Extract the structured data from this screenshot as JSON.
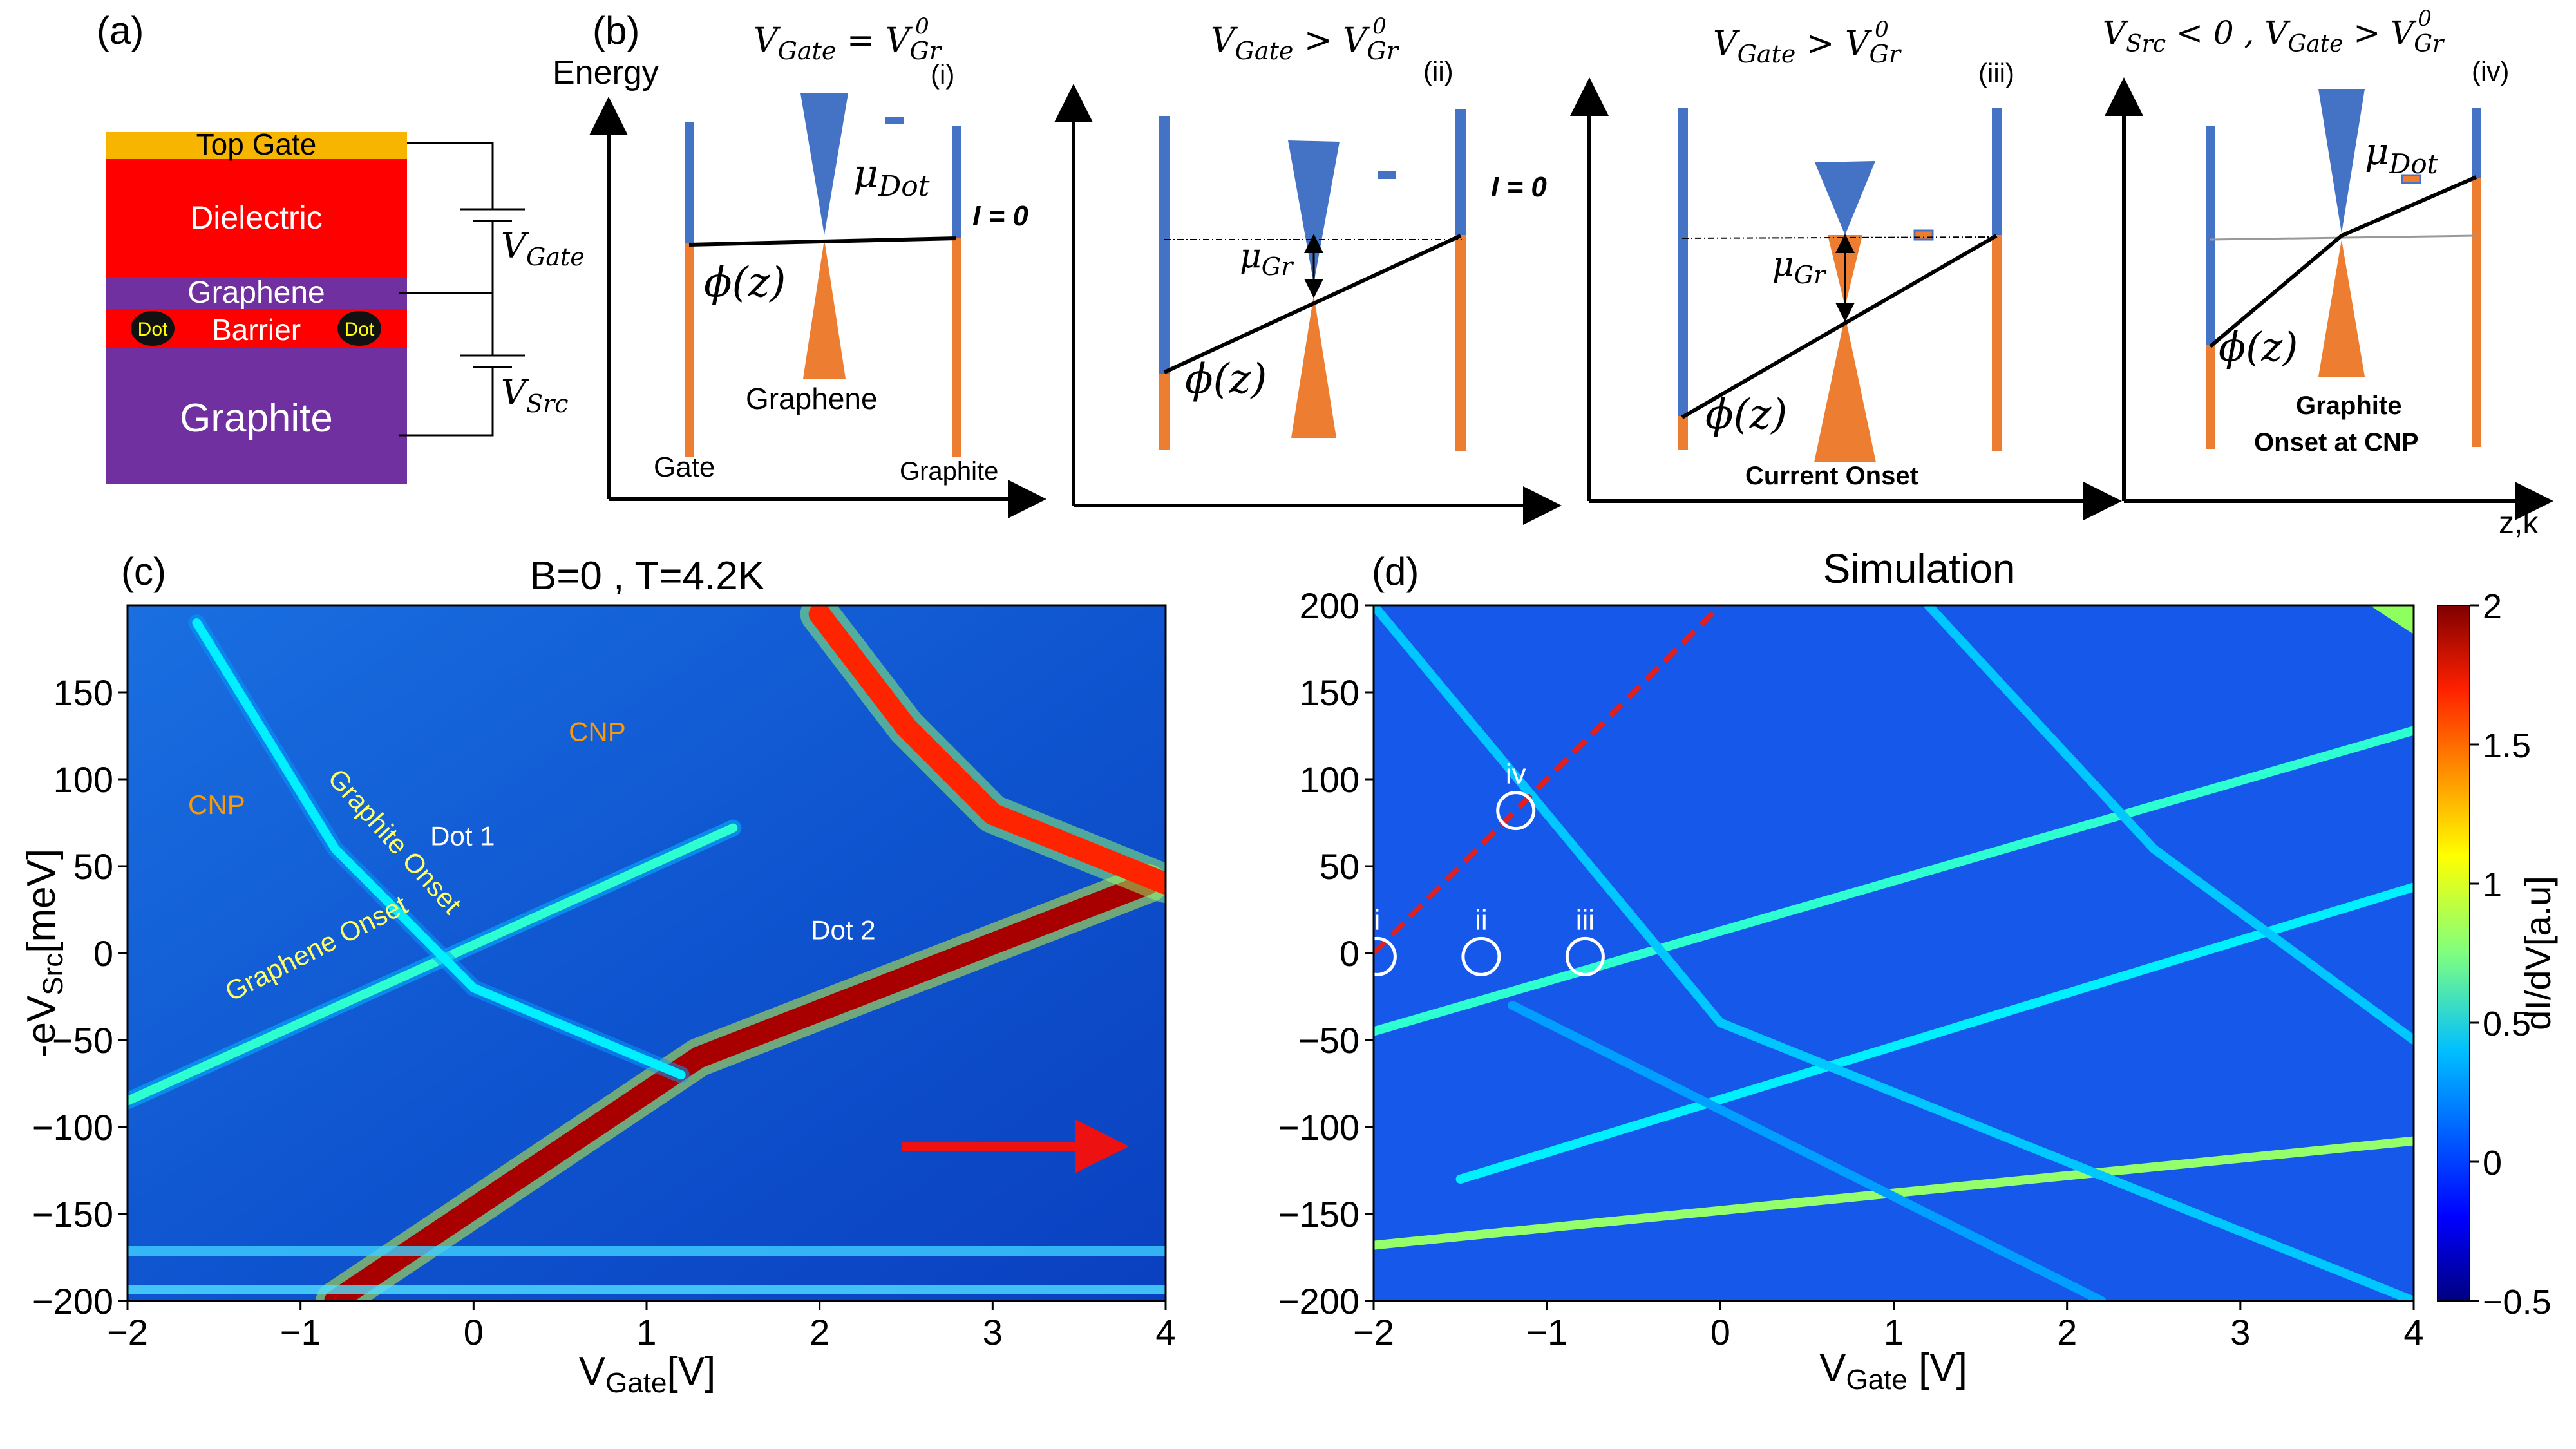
{
  "panel_letters": {
    "a": "(a)",
    "b": "(b)",
    "c": "(c)",
    "d": "(d)"
  },
  "stack": {
    "top_gate": "Top Gate",
    "dielectric": "Dielectric",
    "graphene": "Graphene",
    "barrier": "Barrier",
    "dot_left": "Dot",
    "dot_right": "Dot",
    "graphite": "Graphite",
    "v_gate": "V",
    "v_gate_sub": "Gate",
    "v_src": "V",
    "v_src_sub": "Src",
    "colors": {
      "top_gate": "#f7b500",
      "dielectric": "#ff0000",
      "graphene": "#7030a0",
      "barrier": "#ff0000",
      "graphite": "#7030a0",
      "dot": "#111111",
      "dot_text": "#ffff00"
    }
  },
  "band_diagrams": {
    "axis_energy": "Energy",
    "axis_zk": "z,k",
    "phi_label": "ϕ(z)",
    "mu_dot": "μ",
    "mu_dot_sub": "Dot",
    "mu_gr": "μ",
    "mu_gr_sub": "Gr",
    "panels": [
      {
        "id": "i",
        "title": "V_Gate = V_Gr^0",
        "title_main": "V",
        "title_sub1": "Gate",
        "title_rel": " = V",
        "title_sub2": "Gr",
        "title_sup": "0",
        "tag": "(i)",
        "current": "I = 0",
        "labels": [
          "Gate",
          "Graphene",
          "Graphite"
        ]
      },
      {
        "id": "ii",
        "title": "V_Gate > V_Gr^0",
        "title_main": "V",
        "title_sub1": "Gate",
        "title_rel": " > V",
        "title_sub2": "Gr",
        "title_sup": "0",
        "tag": "(ii)",
        "current": "I = 0",
        "labels": []
      },
      {
        "id": "iii",
        "title": "V_Gate > V_Gr^0",
        "title_main": "V",
        "title_sub1": "Gate",
        "title_rel": " > V",
        "title_sub2": "Gr",
        "title_sup": "0",
        "tag": "(iii)",
        "current": "",
        "labels": [
          "Current Onset"
        ]
      },
      {
        "id": "iv",
        "title": "V_Src < 0 , V_Gate > V_Gr^0",
        "title_pre": "V",
        "title_pre_sub": "Src",
        "title_mid": " < 0 , V",
        "title_main_sub": "Gate",
        "title_rel": " > V",
        "title_sub2": "Gr",
        "title_sup": "0",
        "tag": "(iv)",
        "current": "",
        "labels": [
          "Graphite",
          "Onset at CNP"
        ]
      }
    ],
    "colors": {
      "blue": "#4472c4",
      "orange": "#ed7d31"
    }
  },
  "chart_data": [
    {
      "id": "c",
      "type": "heatmap",
      "title": "B=0 , T=4.2K",
      "xlabel": "V",
      "xlabel_sub": "Gate",
      "xlabel_unit": "[V]",
      "ylabel": "-eV",
      "ylabel_sub": "Src",
      "ylabel_unit": "[meV]",
      "xlim": [
        -2,
        4
      ],
      "ylim": [
        -200,
        200
      ],
      "xticks": [
        -2,
        -1,
        0,
        1,
        2,
        3,
        4
      ],
      "yticks": [
        -200,
        -150,
        -100,
        -50,
        0,
        50,
        100,
        150
      ],
      "annotations": [
        {
          "text": "Graphite Onset",
          "color": "#ffff66",
          "x": -0.85,
          "y": 100,
          "rotation": 48
        },
        {
          "text": "CNP",
          "color": "#ff9900",
          "x": -1.65,
          "y": 80
        },
        {
          "text": "Dot 1",
          "color": "#ffffff",
          "x": -0.25,
          "y": 62
        },
        {
          "text": "CNP",
          "color": "#ff9900",
          "x": 0.55,
          "y": 122
        },
        {
          "text": "Dot 2",
          "color": "#ffffff",
          "x": 1.95,
          "y": 8
        },
        {
          "text": "Graphene Onset",
          "color": "#ffff66",
          "x": -1.4,
          "y": -28,
          "rotation": -27
        }
      ],
      "lines": [
        {
          "name": "graphene-onset",
          "points": [
            [
              -2,
              -85
            ],
            [
              1.5,
              72
            ]
          ],
          "level": 0.55
        },
        {
          "name": "strong-diagonal",
          "points": [
            [
              -0.8,
              -200
            ],
            [
              1.3,
              -60
            ],
            [
              3.9,
              40
            ]
          ],
          "level": 1.9
        },
        {
          "name": "graphite-onset",
          "points": [
            [
              -1.6,
              190
            ],
            [
              -0.8,
              60
            ],
            [
              0,
              -20
            ],
            [
              1.2,
              -70
            ]
          ],
          "level": 0.4
        },
        {
          "name": "cnp-curve",
          "points": [
            [
              2,
              195
            ],
            [
              2.5,
              130
            ],
            [
              3,
              80
            ],
            [
              4,
              40
            ]
          ],
          "level": 1.6
        }
      ]
    },
    {
      "id": "d",
      "type": "heatmap",
      "title": "Simulation",
      "xlabel": "V",
      "xlabel_sub": "Gate",
      "xlabel_unit": " [V]",
      "xlim": [
        -2,
        4
      ],
      "ylim": [
        -200,
        200
      ],
      "xticks": [
        -2,
        -1,
        0,
        1,
        2,
        3,
        4
      ],
      "yticks": [
        -200,
        -150,
        -100,
        -50,
        0,
        50,
        100,
        150,
        200
      ],
      "colorbar": {
        "label": "dI/dV[a.u]",
        "ticks": [
          -0.5,
          0,
          0.5,
          1,
          1.5,
          2
        ],
        "range": [
          -0.5,
          2
        ]
      },
      "circles": [
        {
          "label": "i",
          "x": -1.98,
          "y": -2
        },
        {
          "label": "ii",
          "x": -1.38,
          "y": -2
        },
        {
          "label": "iii",
          "x": -0.78,
          "y": -2
        },
        {
          "label": "iv",
          "x": -1.18,
          "y": 82
        }
      ],
      "dashed_line": {
        "points": [
          [
            -2,
            0
          ],
          [
            0,
            200
          ]
        ],
        "color": "#e02020"
      },
      "lines": [
        {
          "name": "graphene-onset",
          "points": [
            [
              -2,
              -45
            ],
            [
              4,
              128
            ]
          ],
          "level": 0.55
        },
        {
          "name": "dot-line-1",
          "points": [
            [
              -1.5,
              -130
            ],
            [
              4,
              38
            ]
          ],
          "level": 0.4
        },
        {
          "name": "dot-line-2",
          "points": [
            [
              -2,
              -168
            ],
            [
              4,
              -108
            ]
          ],
          "level": 0.8
        },
        {
          "name": "graphite-curve-1",
          "points": [
            [
              -2,
              200
            ],
            [
              0,
              -40
            ],
            [
              4,
              -200
            ]
          ],
          "level": 0.3
        },
        {
          "name": "graphite-curve-2",
          "points": [
            [
              1.2,
              200
            ],
            [
              2.5,
              60
            ],
            [
              4,
              -50
            ]
          ],
          "level": 0.3
        },
        {
          "name": "graphite-curve-3",
          "points": [
            [
              -1.2,
              -30
            ],
            [
              2.2,
              -200
            ]
          ],
          "level": 0.2
        }
      ]
    }
  ]
}
